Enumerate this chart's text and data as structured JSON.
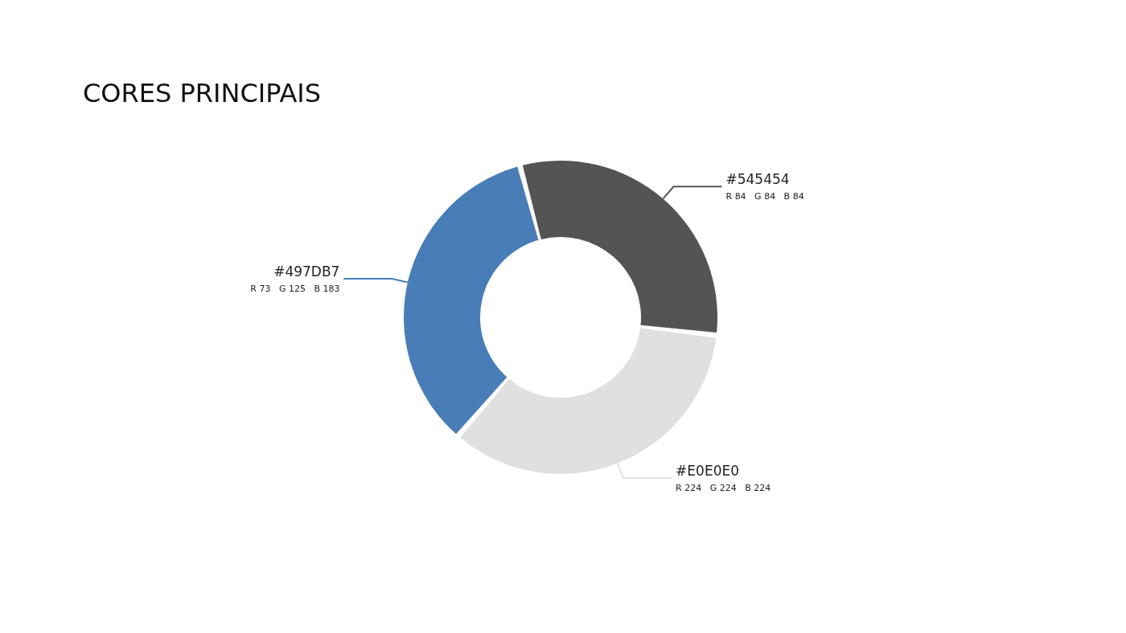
{
  "chart_data": {
    "type": "donut",
    "title": "CORES PRINCIPAIS",
    "categories": [
      "#545454",
      "#E0E0E0",
      "#497DB7"
    ],
    "values": [
      31,
      34.5,
      34.5
    ],
    "colors": [
      "#545454",
      "#e0e0e0",
      "#497db7"
    ],
    "annotations": [
      "R 84   G 84   B 84",
      "R 224   G 224   B 224",
      "R 73   G 125   B 183"
    ]
  }
}
